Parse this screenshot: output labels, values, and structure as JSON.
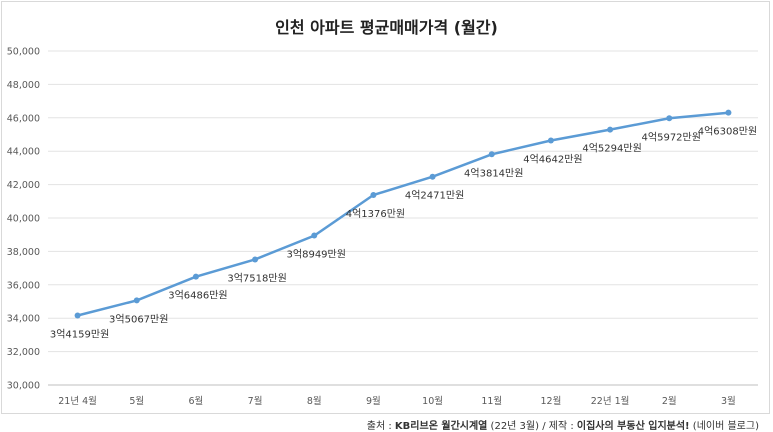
{
  "chart_data": {
    "type": "line",
    "title": "인천 아파트 평균매매가격 (월간)",
    "categories": [
      "21년 4월",
      "5월",
      "6월",
      "7월",
      "8월",
      "9월",
      "10월",
      "11월",
      "12월",
      "22년 1월",
      "2월",
      "3월"
    ],
    "series": [
      {
        "values": [
          34159,
          35067,
          36486,
          37518,
          38949,
          41376,
          42471,
          43814,
          44642,
          45294,
          45972,
          46308
        ],
        "labels": [
          "3억4159만원",
          "3억5067만원",
          "3억6486만원",
          "3억7518만원",
          "3억8949만원",
          "4억1376만원",
          "4억2471만원",
          "4억3814만원",
          "4억4642만원",
          "4억5294만원",
          "4억5972만원",
          "4억6308만원"
        ]
      }
    ],
    "ylim": [
      30000,
      50000
    ],
    "yticks": [
      "30,000",
      "32,000",
      "34,000",
      "36,000",
      "38,000",
      "40,000",
      "42,000",
      "44,000",
      "46,000",
      "48,000",
      "50,000"
    ],
    "grid": true,
    "line_color": "#5b9bd5"
  },
  "source": {
    "prefix": "출처 : ",
    "org": "KB리브온 월간시계열",
    "date": " (22년 3월) / 제작 : ",
    "author": "이집사의 부동산 입지분석!",
    "suffix": " (네이버 블로그)"
  }
}
